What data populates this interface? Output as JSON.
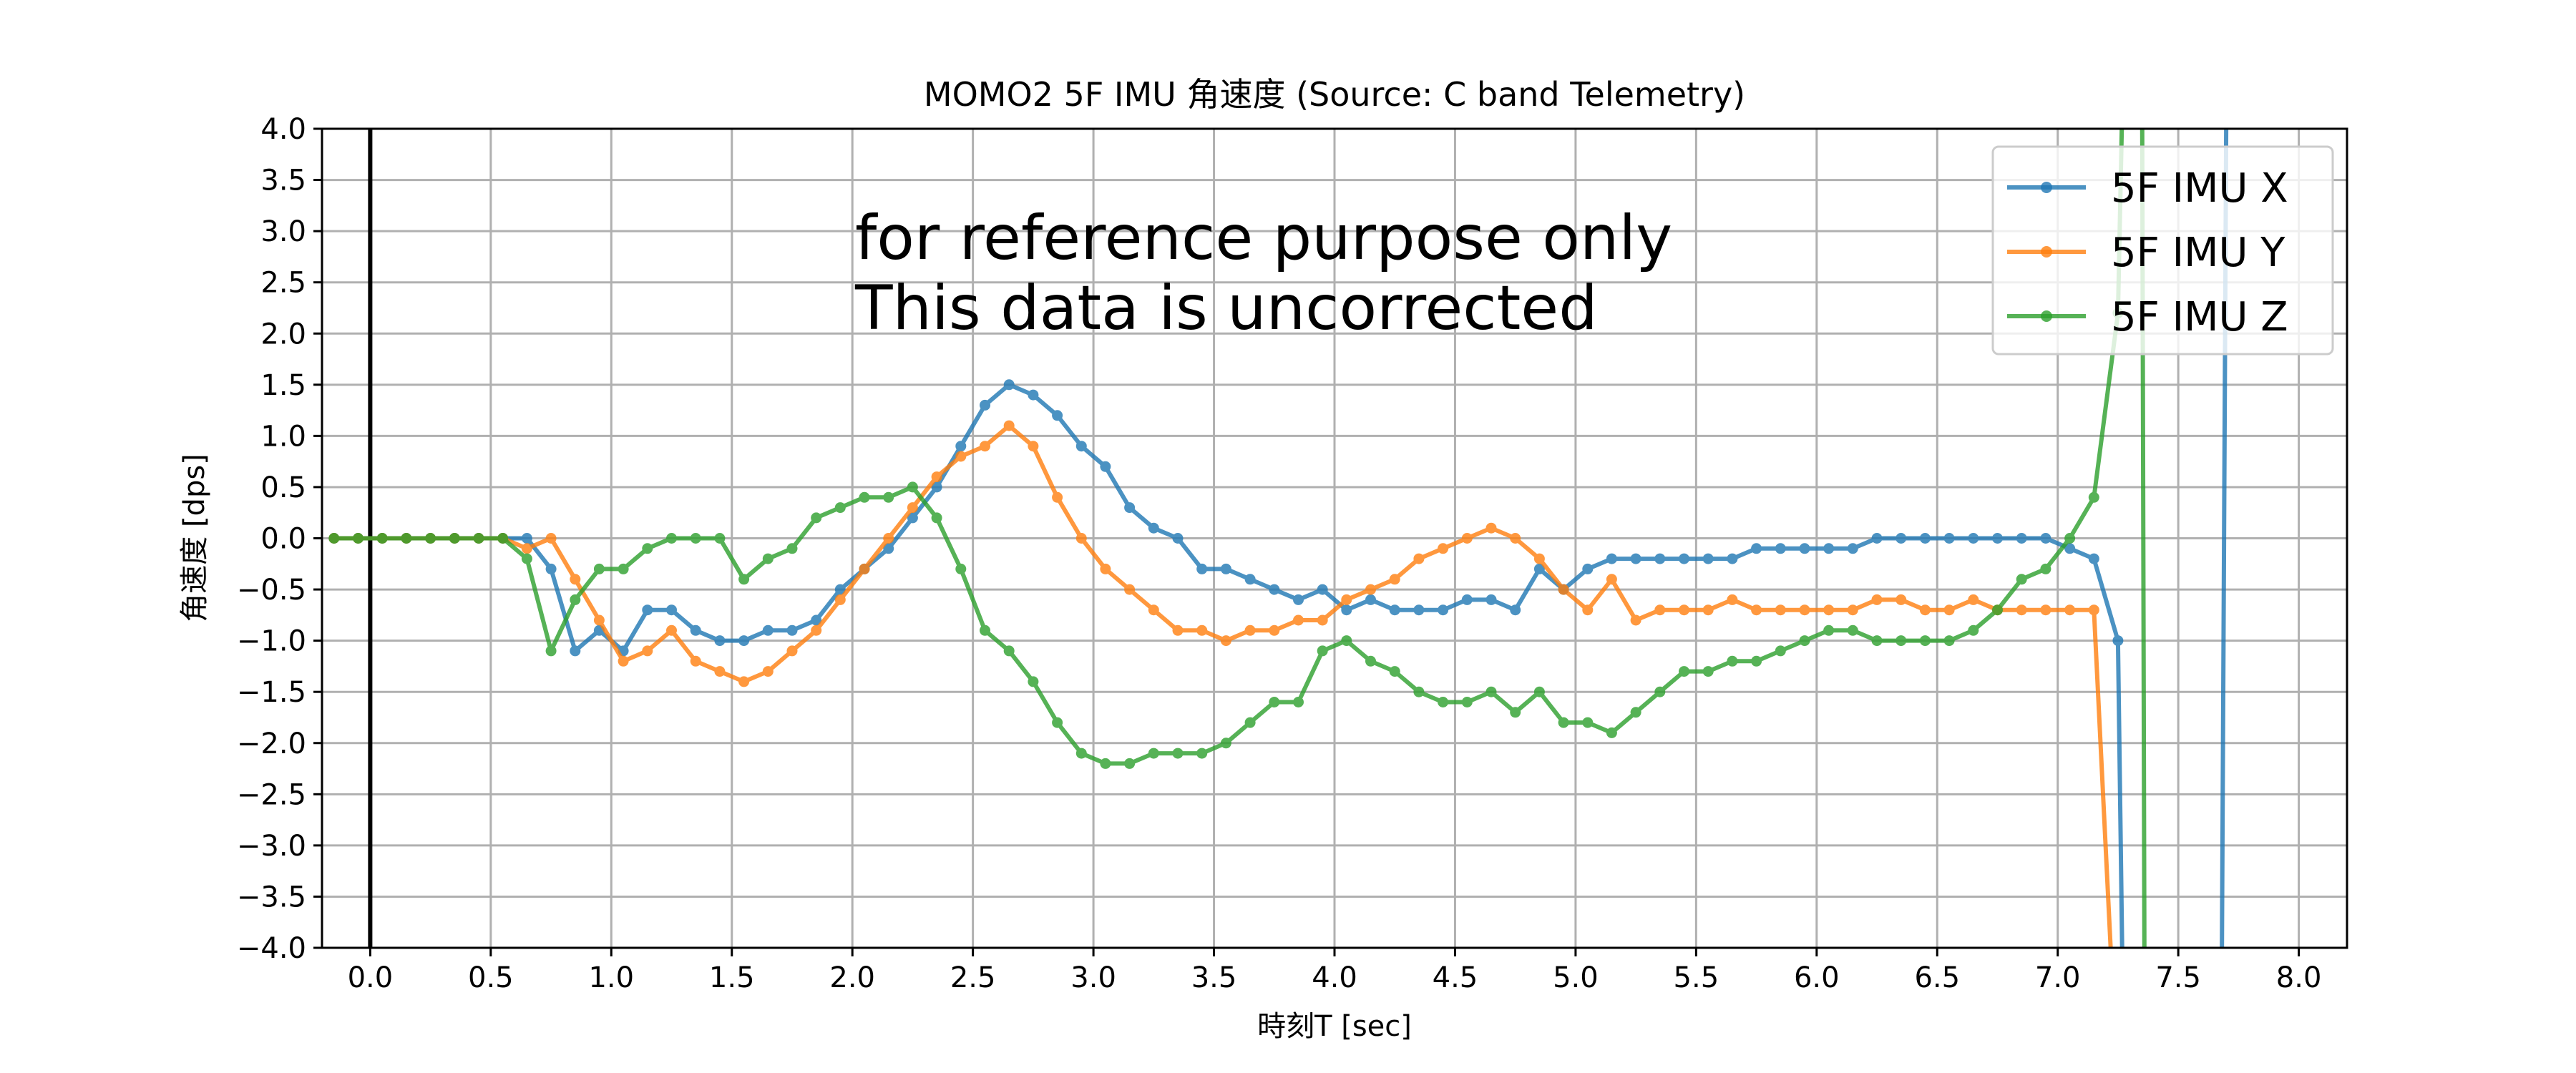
{
  "chart_data": {
    "type": "line",
    "title": "MOMO2 5F IMU 角速度 (Source: C band Telemetry)",
    "xlabel": "時刻T [sec]",
    "ylabel": "角速度 [dps]",
    "xlim": [
      -0.2,
      8.2
    ],
    "ylim": [
      -4.0,
      4.0
    ],
    "xticks": [
      "0.0",
      "0.5",
      "1.0",
      "1.5",
      "2.0",
      "2.5",
      "3.0",
      "3.5",
      "4.0",
      "4.5",
      "5.0",
      "5.5",
      "6.0",
      "6.5",
      "7.0",
      "7.5",
      "8.0"
    ],
    "yticks": [
      "4.0",
      "3.5",
      "3.0",
      "2.5",
      "2.0",
      "1.5",
      "1.0",
      "0.5",
      "0.0",
      "−0.5",
      "−1.0",
      "−1.5",
      "−2.0",
      "−2.5",
      "−3.0",
      "−3.5",
      "−4.0"
    ],
    "grid": true,
    "legend_position": "top-right",
    "vertical_line_x": 0.0,
    "annotation": [
      "for reference purpose only",
      "This data is uncorrected"
    ],
    "series": [
      {
        "name": "5F IMU X",
        "color": "#1f77b4",
        "x": [
          -0.15,
          -0.05,
          0.05,
          0.15,
          0.25,
          0.35,
          0.45,
          0.55,
          0.65,
          0.75,
          0.85,
          0.95,
          1.05,
          1.15,
          1.25,
          1.35,
          1.45,
          1.55,
          1.65,
          1.75,
          1.85,
          1.95,
          2.05,
          2.15,
          2.25,
          2.35,
          2.45,
          2.55,
          2.65,
          2.75,
          2.85,
          2.95,
          3.05,
          3.15,
          3.25,
          3.35,
          3.45,
          3.55,
          3.65,
          3.75,
          3.85,
          3.95,
          4.05,
          4.15,
          4.25,
          4.35,
          4.45,
          4.55,
          4.65,
          4.75,
          4.85,
          4.95,
          5.05,
          5.15,
          5.25,
          5.35,
          5.45,
          5.55,
          5.65,
          5.75,
          5.85,
          5.95,
          6.05,
          6.15,
          6.25,
          6.35,
          6.45,
          6.55,
          6.65,
          6.75,
          6.85,
          6.95,
          7.05,
          7.15,
          7.25
        ],
        "y": [
          0,
          0,
          0,
          0,
          0,
          0,
          0,
          0,
          0,
          -0.3,
          -1.1,
          -0.9,
          -1.1,
          -0.7,
          -0.7,
          -0.9,
          -1.0,
          -1.0,
          -0.9,
          -0.9,
          -0.8,
          -0.5,
          -0.3,
          -0.1,
          0.2,
          0.5,
          0.9,
          1.3,
          1.5,
          1.4,
          1.2,
          0.9,
          0.7,
          0.3,
          0.1,
          0,
          -0.3,
          -0.3,
          -0.4,
          -0.5,
          -0.6,
          -0.5,
          -0.7,
          -0.6,
          -0.7,
          -0.7,
          -0.7,
          -0.6,
          -0.6,
          -0.7,
          -0.3,
          -0.5,
          -0.3,
          -0.2,
          -0.2,
          -0.2,
          -0.2,
          -0.2,
          -0.2,
          -0.1,
          -0.1,
          -0.1,
          -0.1,
          -0.1,
          0,
          0,
          0,
          0,
          0,
          0,
          0,
          0,
          -0.1,
          -0.2,
          -1.0
        ],
        "tail_x": [
          7.25,
          7.27,
          7.68,
          7.7
        ],
        "tail_y": [
          -1.0,
          -4.5,
          -4.5,
          4.5
        ]
      },
      {
        "name": "5F IMU Y",
        "color": "#ff7f0e",
        "x": [
          -0.15,
          -0.05,
          0.05,
          0.15,
          0.25,
          0.35,
          0.45,
          0.55,
          0.65,
          0.75,
          0.85,
          0.95,
          1.05,
          1.15,
          1.25,
          1.35,
          1.45,
          1.55,
          1.65,
          1.75,
          1.85,
          1.95,
          2.05,
          2.15,
          2.25,
          2.35,
          2.45,
          2.55,
          2.65,
          2.75,
          2.85,
          2.95,
          3.05,
          3.15,
          3.25,
          3.35,
          3.45,
          3.55,
          3.65,
          3.75,
          3.85,
          3.95,
          4.05,
          4.15,
          4.25,
          4.35,
          4.45,
          4.55,
          4.65,
          4.75,
          4.85,
          4.95,
          5.05,
          5.15,
          5.25,
          5.35,
          5.45,
          5.55,
          5.65,
          5.75,
          5.85,
          5.95,
          6.05,
          6.15,
          6.25,
          6.35,
          6.45,
          6.55,
          6.65,
          6.75,
          6.85,
          6.95,
          7.05,
          7.15
        ],
        "y": [
          0,
          0,
          0,
          0,
          0,
          0,
          0,
          0,
          -0.1,
          0,
          -0.4,
          -0.8,
          -1.2,
          -1.1,
          -0.9,
          -1.2,
          -1.3,
          -1.4,
          -1.3,
          -1.1,
          -0.9,
          -0.6,
          -0.3,
          0,
          0.3,
          0.6,
          0.8,
          0.9,
          1.1,
          0.9,
          0.4,
          0,
          -0.3,
          -0.5,
          -0.7,
          -0.9,
          -0.9,
          -1.0,
          -0.9,
          -0.9,
          -0.8,
          -0.8,
          -0.6,
          -0.5,
          -0.4,
          -0.2,
          -0.1,
          0,
          0.1,
          0,
          -0.2,
          -0.5,
          -0.7,
          -0.4,
          -0.8,
          -0.7,
          -0.7,
          -0.7,
          -0.6,
          -0.7,
          -0.7,
          -0.7,
          -0.7,
          -0.7,
          -0.6,
          -0.6,
          -0.7,
          -0.7,
          -0.6,
          -0.7,
          -0.7,
          -0.7,
          -0.7,
          -0.7
        ],
        "tail_x": [
          7.15,
          7.23
        ],
        "tail_y": [
          -0.7,
          -4.5
        ]
      },
      {
        "name": "5F IMU Z",
        "color": "#2ca02c",
        "x": [
          -0.15,
          -0.05,
          0.05,
          0.15,
          0.25,
          0.35,
          0.45,
          0.55,
          0.65,
          0.75,
          0.85,
          0.95,
          1.05,
          1.15,
          1.25,
          1.35,
          1.45,
          1.55,
          1.65,
          1.75,
          1.85,
          1.95,
          2.05,
          2.15,
          2.25,
          2.35,
          2.45,
          2.55,
          2.65,
          2.75,
          2.85,
          2.95,
          3.05,
          3.15,
          3.25,
          3.35,
          3.45,
          3.55,
          3.65,
          3.75,
          3.85,
          3.95,
          4.05,
          4.15,
          4.25,
          4.35,
          4.45,
          4.55,
          4.65,
          4.75,
          4.85,
          4.95,
          5.05,
          5.15,
          5.25,
          5.35,
          5.45,
          5.55,
          5.65,
          5.75,
          5.85,
          5.95,
          6.05,
          6.15,
          6.25,
          6.35,
          6.45,
          6.55,
          6.65,
          6.75,
          6.85,
          6.95,
          7.05,
          7.15,
          7.25
        ],
        "y": [
          0,
          0,
          0,
          0,
          0,
          0,
          0,
          0,
          -0.2,
          -1.1,
          -0.6,
          -0.3,
          -0.3,
          -0.1,
          0,
          0,
          0,
          -0.4,
          -0.2,
          -0.1,
          0.2,
          0.3,
          0.4,
          0.4,
          0.5,
          0.2,
          -0.3,
          -0.9,
          -1.1,
          -1.4,
          -1.8,
          -2.1,
          -2.2,
          -2.2,
          -2.1,
          -2.1,
          -2.1,
          -2.0,
          -1.8,
          -1.6,
          -1.6,
          -1.1,
          -1.0,
          -1.2,
          -1.3,
          -1.5,
          -1.6,
          -1.6,
          -1.5,
          -1.7,
          -1.5,
          -1.8,
          -1.8,
          -1.9,
          -1.7,
          -1.5,
          -1.3,
          -1.3,
          -1.2,
          -1.2,
          -1.1,
          -1.0,
          -0.9,
          -0.9,
          -1.0,
          -1.0,
          -1.0,
          -1.0,
          -0.9,
          -0.7,
          -0.4,
          -0.3,
          0,
          0.4,
          2.2
        ],
        "tail_x": [
          7.25,
          7.27,
          7.35,
          7.36
        ],
        "tail_y": [
          2.2,
          4.5,
          4.5,
          -4.5
        ]
      }
    ]
  }
}
